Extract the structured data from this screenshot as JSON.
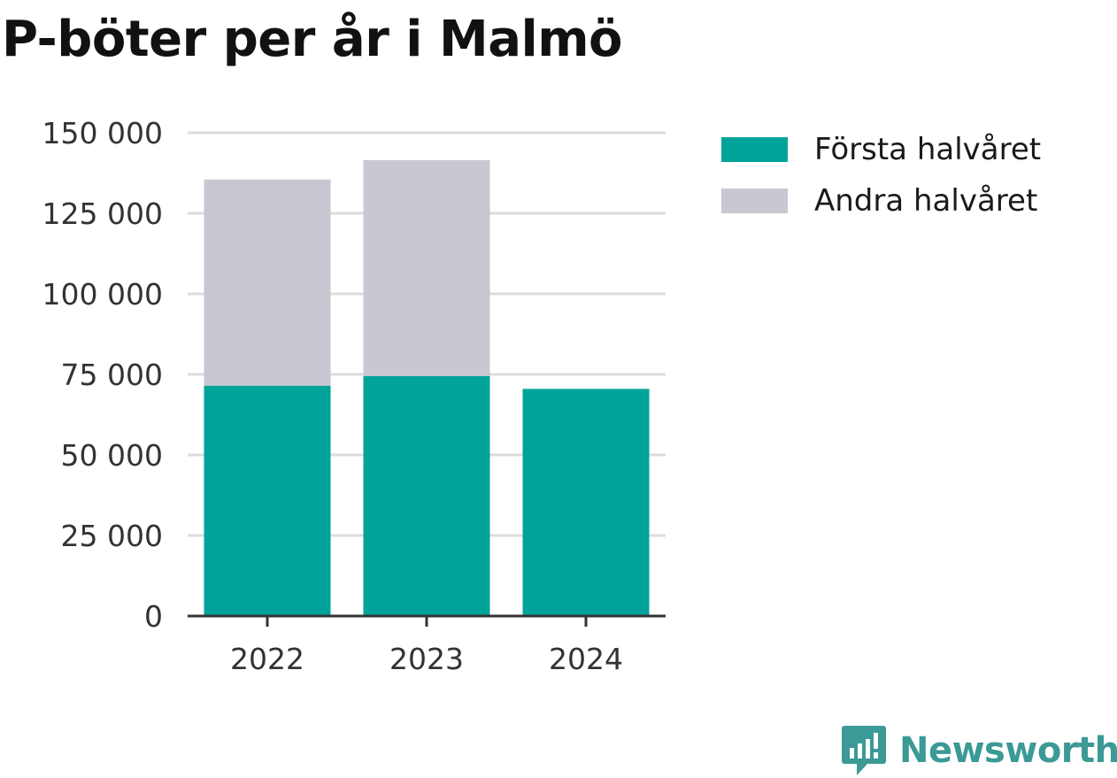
{
  "chart_data": {
    "type": "bar",
    "stacked": true,
    "title": "P-böter per år i Malmö",
    "xlabel": "",
    "ylabel": "",
    "categories": [
      "2022",
      "2023",
      "2024"
    ],
    "series": [
      {
        "name": "Första halvåret",
        "color": "#00a39a",
        "values": [
          71500,
          74500,
          70500
        ]
      },
      {
        "name": "Andra halvåret",
        "color": "#c8c7d2",
        "values": [
          64000,
          67000,
          0
        ]
      }
    ],
    "ylim": [
      0,
      150000
    ],
    "yticks": [
      0,
      25000,
      50000,
      75000,
      100000,
      125000,
      150000
    ],
    "ytick_labels": [
      "0",
      "25 000",
      "50 000",
      "75 000",
      "100 000",
      "125 000",
      "150 000"
    ],
    "grid": true,
    "legend_position": "right"
  },
  "brand": {
    "name": "Newsworthy",
    "icon": "newsworthy-logo-icon",
    "color": "#3b9a96"
  }
}
